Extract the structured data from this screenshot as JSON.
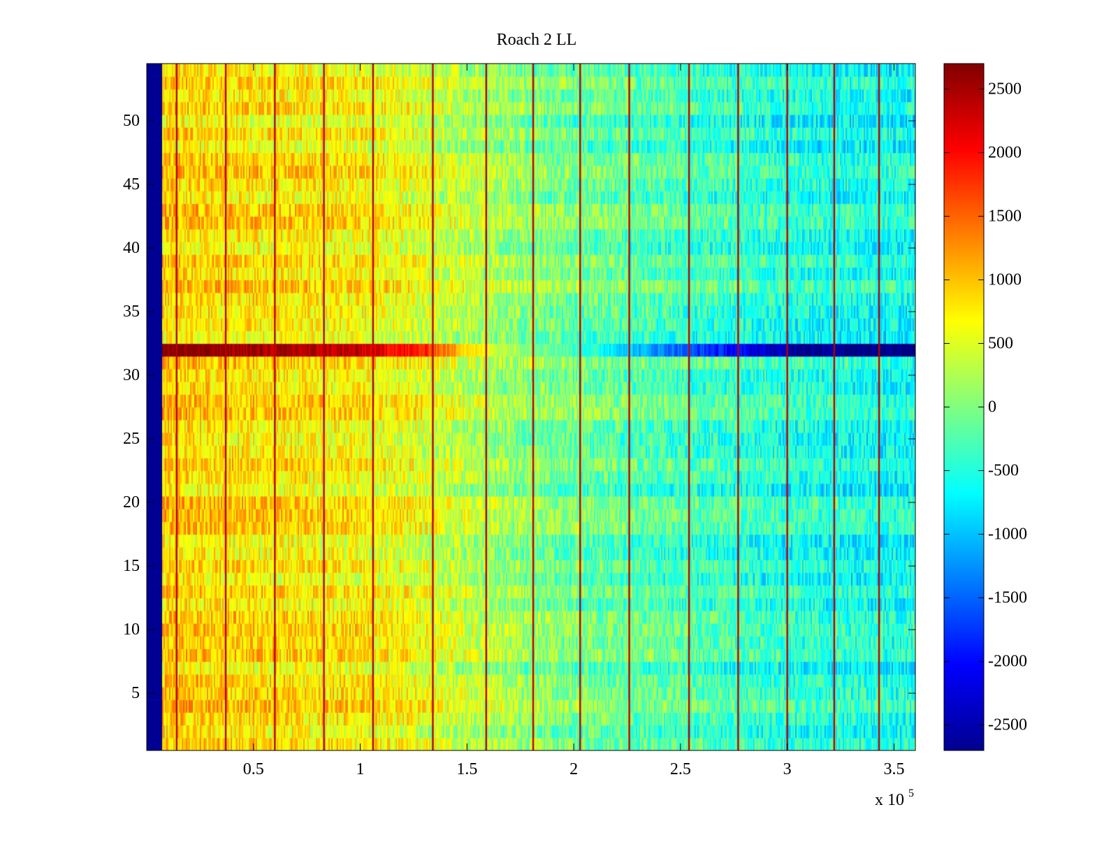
{
  "chart_data": {
    "type": "heatmap",
    "title": "Roach 2 LL",
    "xlabel": "",
    "ylabel": "",
    "x_exponent_label": "x 10",
    "x_exponent_power": "5",
    "xlim": [
      0,
      3.6
    ],
    "ylim": [
      0.5,
      54.5
    ],
    "x_ticks": [
      0.5,
      1,
      1.5,
      2,
      2.5,
      3,
      3.5
    ],
    "x_tick_labels": [
      "0.5",
      "1",
      "1.5",
      "2",
      "2.5",
      "3",
      "3.5"
    ],
    "y_ticks": [
      5,
      10,
      15,
      20,
      25,
      30,
      35,
      40,
      45,
      50
    ],
    "y_tick_labels": [
      "5",
      "10",
      "15",
      "20",
      "25",
      "30",
      "35",
      "40",
      "45",
      "50"
    ],
    "rows": 54,
    "colormap": "jet",
    "clim": [
      -2700,
      2700
    ],
    "colorbar": {
      "ticks": [
        2500,
        2000,
        1500,
        1000,
        500,
        0,
        -500,
        -1000,
        -1500,
        -2000,
        -2500
      ],
      "tick_labels": [
        "2500",
        "2000",
        "1500",
        "1000",
        "500",
        "0",
        "-500",
        "-1000",
        "-1500",
        "-2000",
        "-2500"
      ]
    },
    "trend_columns_x": [
      0.1,
      0.5,
      1.0,
      1.3,
      1.6,
      2.0,
      2.5,
      3.0,
      3.5,
      3.6
    ],
    "trend_values": [
      900,
      800,
      700,
      500,
      200,
      -100,
      -300,
      -500,
      -600,
      -600
    ],
    "highlighted_row": 32,
    "highlighted_row_values": [
      2700,
      2500,
      2300,
      1800,
      500,
      -300,
      -1500,
      -2500,
      -2700,
      -2700
    ],
    "vertical_line_x": [
      0.14,
      0.37,
      0.6,
      0.83,
      1.06,
      1.34,
      1.59,
      1.81,
      2.03,
      2.26,
      2.54,
      2.77,
      3.0,
      3.22,
      3.43
    ],
    "vertical_line_value": 2400,
    "left_edge_column_value": -2600,
    "left_edge_column_width": 0.07
  }
}
